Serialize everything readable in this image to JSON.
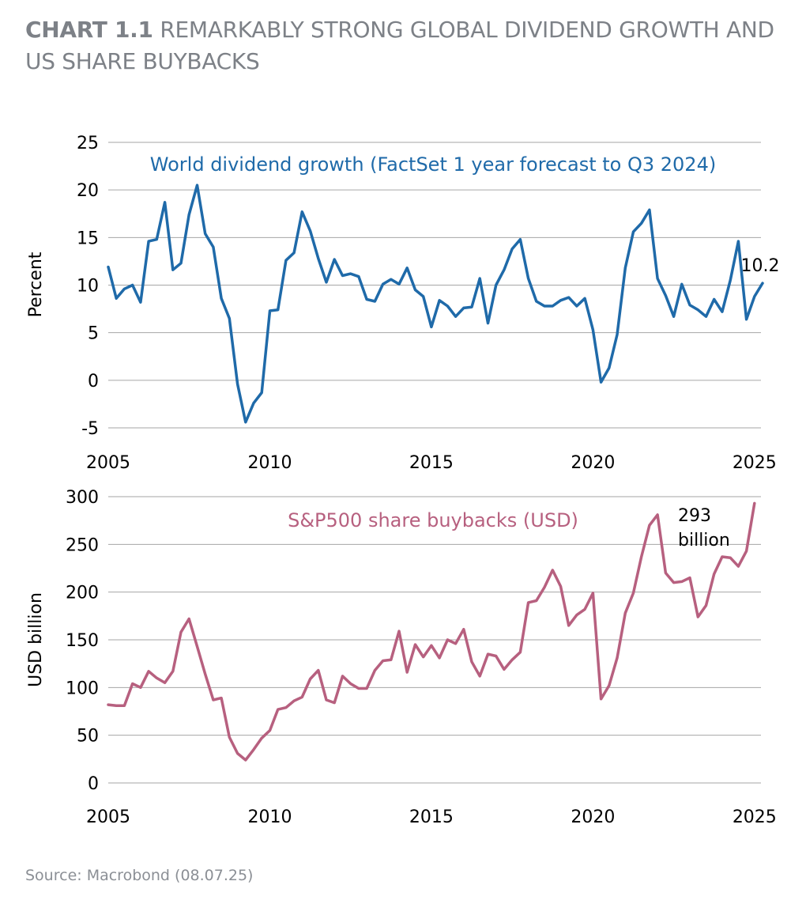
{
  "title_bold": "CHART 1.1",
  "title_rest": "REMARKABLY STRONG GLOBAL DIVIDEND GROWTH AND US SHARE BUYBACKS",
  "source": "Source: Macrobond (08.07.25)",
  "colors": {
    "top_series": "#1f6aa9",
    "bottom_series": "#b7607f",
    "grid": "#a6a6a6",
    "title": "#7d8187"
  },
  "chart_data": [
    {
      "type": "line",
      "ylabel": "Percent",
      "ylim": [
        -5,
        25
      ],
      "yticks": [
        25,
        20,
        15,
        10,
        5,
        0,
        -5
      ],
      "xlim": [
        2005,
        2025.2
      ],
      "xticks": [
        2005,
        2010,
        2015,
        2020,
        2025
      ],
      "grid": true,
      "series_label": "World dividend growth (FactSet 1 year forecast to Q3 2024)",
      "end_label": "10.2",
      "series": [
        {
          "name": "World dividend growth (FactSet 1 year forecast to Q3 2024)",
          "x": [
            2005.0,
            2005.25,
            2005.5,
            2005.75,
            2006.0,
            2006.25,
            2006.5,
            2006.75,
            2007.0,
            2007.25,
            2007.5,
            2007.75,
            2008.0,
            2008.25,
            2008.5,
            2008.75,
            2009.0,
            2009.25,
            2009.5,
            2009.75,
            2010.0,
            2010.25,
            2010.5,
            2010.75,
            2011.0,
            2011.25,
            2011.5,
            2011.75,
            2012.0,
            2012.25,
            2012.5,
            2012.75,
            2013.0,
            2013.25,
            2013.5,
            2013.75,
            2014.0,
            2014.25,
            2014.5,
            2014.75,
            2015.0,
            2015.25,
            2015.5,
            2015.75,
            2016.0,
            2016.25,
            2016.5,
            2016.75,
            2017.0,
            2017.25,
            2017.5,
            2017.75,
            2018.0,
            2018.25,
            2018.5,
            2018.75,
            2019.0,
            2019.25,
            2019.5,
            2019.75,
            2020.0,
            2020.25,
            2020.5,
            2020.75,
            2021.0,
            2021.25,
            2021.5,
            2021.75,
            2022.0,
            2022.25,
            2022.5,
            2022.75,
            2023.0,
            2023.25,
            2023.5,
            2023.75,
            2024.0,
            2024.25,
            2024.5,
            2024.75,
            2025.0,
            2025.25
          ],
          "values": [
            11.9,
            8.6,
            9.6,
            10.0,
            8.2,
            14.6,
            14.8,
            18.7,
            11.6,
            12.3,
            17.4,
            20.5,
            15.4,
            14.0,
            8.6,
            6.5,
            -0.4,
            -4.4,
            -2.4,
            -1.3,
            7.3,
            7.4,
            12.6,
            13.4,
            17.7,
            15.7,
            12.8,
            10.3,
            12.7,
            11.0,
            11.2,
            10.9,
            8.5,
            8.3,
            10.1,
            10.6,
            10.1,
            11.8,
            9.5,
            8.8,
            5.6,
            8.4,
            7.8,
            6.7,
            7.6,
            7.7,
            10.7,
            6.0,
            10.0,
            11.6,
            13.8,
            14.8,
            10.7,
            8.3,
            7.8,
            7.8,
            8.4,
            8.7,
            7.8,
            8.6,
            5.3,
            -0.2,
            1.3,
            4.8,
            11.8,
            15.6,
            16.5,
            17.9,
            10.7,
            8.9,
            6.7,
            10.1,
            7.9,
            7.4,
            6.7,
            8.5,
            7.2,
            10.5,
            14.6,
            6.4,
            8.8,
            10.2
          ]
        }
      ]
    },
    {
      "type": "line",
      "ylabel": "USD billion",
      "ylim": [
        0,
        300
      ],
      "yticks": [
        300,
        250,
        200,
        150,
        100,
        50,
        0
      ],
      "xlim": [
        2005,
        2025.2
      ],
      "xticks": [
        2005,
        2010,
        2015,
        2020,
        2025
      ],
      "grid": true,
      "series_label": "S&P500 share buybacks (USD)",
      "end_label_line1": "293",
      "end_label_line2": "billion",
      "series": [
        {
          "name": "S&P500 share buybacks (USD)",
          "x": [
            2005.0,
            2005.25,
            2005.5,
            2005.75,
            2006.0,
            2006.25,
            2006.5,
            2006.75,
            2007.0,
            2007.25,
            2007.5,
            2007.75,
            2008.0,
            2008.25,
            2008.5,
            2008.75,
            2009.0,
            2009.25,
            2009.5,
            2009.75,
            2010.0,
            2010.25,
            2010.5,
            2010.75,
            2011.0,
            2011.25,
            2011.5,
            2011.75,
            2012.0,
            2012.25,
            2012.5,
            2012.75,
            2013.0,
            2013.25,
            2013.5,
            2013.75,
            2014.0,
            2014.25,
            2014.5,
            2014.75,
            2015.0,
            2015.25,
            2015.5,
            2015.75,
            2016.0,
            2016.25,
            2016.5,
            2016.75,
            2017.0,
            2017.25,
            2017.5,
            2017.75,
            2018.0,
            2018.25,
            2018.5,
            2018.75,
            2019.0,
            2019.25,
            2019.5,
            2019.75,
            2020.0,
            2020.25,
            2020.5,
            2020.75,
            2021.0,
            2021.25,
            2021.5,
            2021.75,
            2022.0,
            2022.25,
            2022.5,
            2022.75,
            2023.0,
            2023.25,
            2023.5,
            2023.75,
            2024.0,
            2024.25,
            2024.5,
            2024.75,
            2025.0
          ],
          "values": [
            82,
            81,
            81,
            104,
            100,
            117,
            110,
            105,
            117,
            158,
            172,
            143,
            114,
            87,
            89,
            48,
            31,
            24,
            35,
            47,
            55,
            77,
            79,
            86,
            90,
            109,
            118,
            87,
            84,
            112,
            104,
            99,
            99,
            118,
            128,
            129,
            159,
            116,
            145,
            132,
            144,
            131,
            150,
            146,
            161,
            127,
            112,
            135,
            133,
            119,
            129,
            137,
            189,
            191,
            205,
            223,
            206,
            165,
            176,
            182,
            199,
            88,
            102,
            131,
            178,
            199,
            237,
            270,
            281,
            220,
            210,
            211,
            215,
            174,
            186,
            219,
            237,
            236,
            227,
            243,
            293
          ]
        }
      ]
    }
  ]
}
